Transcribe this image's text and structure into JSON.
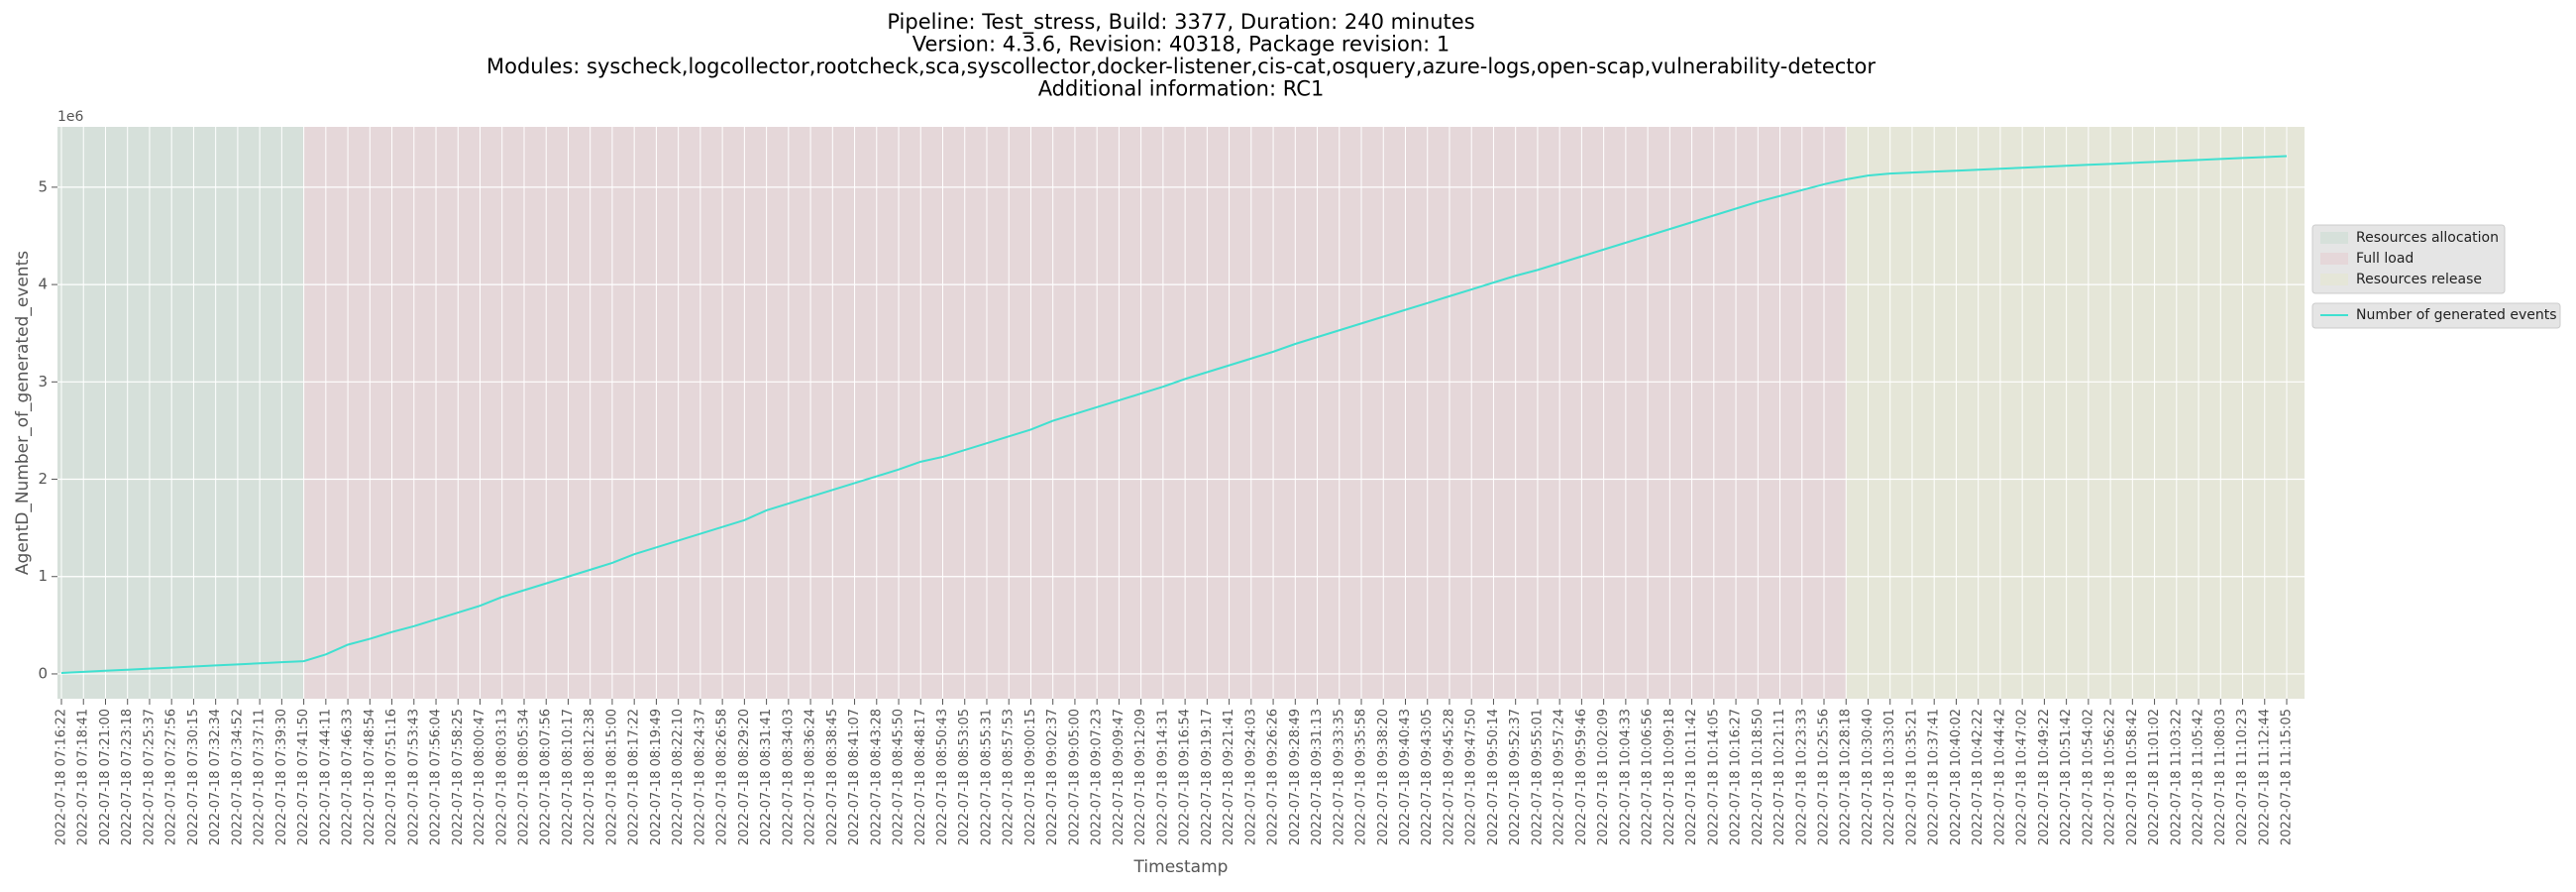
{
  "chart_data": {
    "type": "line",
    "title": [
      "Pipeline: Test_stress, Build: 3377, Duration: 240 minutes",
      "Version: 4.3.6, Revision: 40318, Package revision: 1",
      "Modules: syscheck,logcollector,rootcheck,sca,syscollector,docker-listener,cis-cat,osquery,azure-logs,open-scap,vulnerability-detector",
      "Additional information: RC1"
    ],
    "x_label": "Timestamp",
    "y_label": "AgentD_Number_of_generated_events",
    "y_offset_label": "1e6",
    "categories": [
      "2022-07-18 07:16:22",
      "2022-07-18 07:18:41",
      "2022-07-18 07:21:00",
      "2022-07-18 07:23:18",
      "2022-07-18 07:25:37",
      "2022-07-18 07:27:56",
      "2022-07-18 07:30:15",
      "2022-07-18 07:32:34",
      "2022-07-18 07:34:52",
      "2022-07-18 07:37:11",
      "2022-07-18 07:39:30",
      "2022-07-18 07:41:50",
      "2022-07-18 07:44:11",
      "2022-07-18 07:46:33",
      "2022-07-18 07:48:54",
      "2022-07-18 07:51:16",
      "2022-07-18 07:53:43",
      "2022-07-18 07:56:04",
      "2022-07-18 07:58:25",
      "2022-07-18 08:00:47",
      "2022-07-18 08:03:13",
      "2022-07-18 08:05:34",
      "2022-07-18 08:07:56",
      "2022-07-18 08:10:17",
      "2022-07-18 08:12:38",
      "2022-07-18 08:15:00",
      "2022-07-18 08:17:22",
      "2022-07-18 08:19:49",
      "2022-07-18 08:22:10",
      "2022-07-18 08:24:37",
      "2022-07-18 08:26:58",
      "2022-07-18 08:29:20",
      "2022-07-18 08:31:41",
      "2022-07-18 08:34:03",
      "2022-07-18 08:36:24",
      "2022-07-18 08:38:45",
      "2022-07-18 08:41:07",
      "2022-07-18 08:43:28",
      "2022-07-18 08:45:50",
      "2022-07-18 08:48:17",
      "2022-07-18 08:50:43",
      "2022-07-18 08:53:05",
      "2022-07-18 08:55:31",
      "2022-07-18 08:57:53",
      "2022-07-18 09:00:15",
      "2022-07-18 09:02:37",
      "2022-07-18 09:05:00",
      "2022-07-18 09:07:23",
      "2022-07-18 09:09:47",
      "2022-07-18 09:12:09",
      "2022-07-18 09:14:31",
      "2022-07-18 09:16:54",
      "2022-07-18 09:19:17",
      "2022-07-18 09:21:41",
      "2022-07-18 09:24:03",
      "2022-07-18 09:26:26",
      "2022-07-18 09:28:49",
      "2022-07-18 09:31:13",
      "2022-07-18 09:33:35",
      "2022-07-18 09:35:58",
      "2022-07-18 09:38:20",
      "2022-07-18 09:40:43",
      "2022-07-18 09:43:05",
      "2022-07-18 09:45:28",
      "2022-07-18 09:47:50",
      "2022-07-18 09:50:14",
      "2022-07-18 09:52:37",
      "2022-07-18 09:55:01",
      "2022-07-18 09:57:24",
      "2022-07-18 09:59:46",
      "2022-07-18 10:02:09",
      "2022-07-18 10:04:33",
      "2022-07-18 10:06:56",
      "2022-07-18 10:09:18",
      "2022-07-18 10:11:42",
      "2022-07-18 10:14:05",
      "2022-07-18 10:16:27",
      "2022-07-18 10:18:50",
      "2022-07-18 10:21:11",
      "2022-07-18 10:23:33",
      "2022-07-18 10:25:56",
      "2022-07-18 10:28:18",
      "2022-07-18 10:30:40",
      "2022-07-18 10:33:01",
      "2022-07-18 10:35:21",
      "2022-07-18 10:37:41",
      "2022-07-18 10:40:02",
      "2022-07-18 10:42:22",
      "2022-07-18 10:44:42",
      "2022-07-18 10:47:02",
      "2022-07-18 10:49:22",
      "2022-07-18 10:51:42",
      "2022-07-18 10:54:02",
      "2022-07-18 10:56:22",
      "2022-07-18 10:58:42",
      "2022-07-18 11:01:02",
      "2022-07-18 11:03:22",
      "2022-07-18 11:05:42",
      "2022-07-18 11:08:03",
      "2022-07-18 11:10:23",
      "2022-07-18 11:12:44",
      "2022-07-18 11:15:05"
    ],
    "series": [
      {
        "name": "Number of generated events",
        "color": "#40e0d0",
        "values": [
          10000,
          21000,
          32000,
          43000,
          54000,
          65000,
          76000,
          87000,
          98000,
          109000,
          120000,
          131000,
          200000,
          300000,
          360000,
          430000,
          490000,
          560000,
          630000,
          700000,
          790000,
          860000,
          930000,
          1000000,
          1070000,
          1140000,
          1230000,
          1300000,
          1370000,
          1440000,
          1510000,
          1580000,
          1680000,
          1750000,
          1820000,
          1890000,
          1960000,
          2030000,
          2100000,
          2180000,
          2230000,
          2300000,
          2370000,
          2440000,
          2510000,
          2600000,
          2670000,
          2740000,
          2810000,
          2880000,
          2950000,
          3030000,
          3100000,
          3170000,
          3240000,
          3310000,
          3390000,
          3460000,
          3530000,
          3600000,
          3670000,
          3740000,
          3810000,
          3880000,
          3950000,
          4020000,
          4090000,
          4150000,
          4220000,
          4290000,
          4360000,
          4430000,
          4500000,
          4570000,
          4640000,
          4710000,
          4780000,
          4850000,
          4910000,
          4970000,
          5030000,
          5080000,
          5120000,
          5140000,
          5150000,
          5160000,
          5170000,
          5180000,
          5190000,
          5200000,
          5210000,
          5220000,
          5230000,
          5240000,
          5250000,
          5260000,
          5270000,
          5280000,
          5290000,
          5300000,
          5310000,
          5320000
        ]
      }
    ],
    "spans": [
      {
        "name": "Resources allocation",
        "color": "#d6e0da",
        "start": "2022-07-18 07:16:22",
        "end": "2022-07-18 07:41:50"
      },
      {
        "name": "Full load",
        "color": "#e5d7d9",
        "start": "2022-07-18 07:41:50",
        "end": "2022-07-18 10:28:18"
      },
      {
        "name": "Resources release",
        "color": "#e5e6d8",
        "start": "2022-07-18 10:28:18",
        "end": "2022-07-18 11:15:05"
      }
    ],
    "ylim": [
      -255000,
      5620000
    ],
    "yticks": [
      {
        "value": 0,
        "label": "0"
      },
      {
        "value": 1000000,
        "label": "1"
      },
      {
        "value": 2000000,
        "label": "2"
      },
      {
        "value": 3000000,
        "label": "3"
      },
      {
        "value": 4000000,
        "label": "4"
      },
      {
        "value": 5000000,
        "label": "5"
      }
    ],
    "grid": true,
    "legend": "outside right"
  }
}
